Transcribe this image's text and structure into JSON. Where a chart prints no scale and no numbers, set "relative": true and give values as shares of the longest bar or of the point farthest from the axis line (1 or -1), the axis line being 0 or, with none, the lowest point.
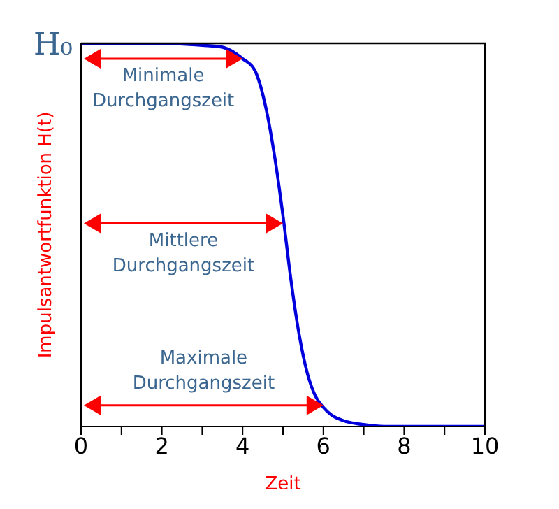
{
  "chart_data": {
    "type": "line",
    "relative": true,
    "xlabel": "Zeit",
    "ylabel": "Impulsantwortfunktion H(t)",
    "x": [
      0,
      1,
      2,
      3,
      3.5,
      4,
      4.3,
      4.6,
      4.8,
      5,
      5.2,
      5.4,
      5.6,
      5.8,
      6,
      6.2,
      6.5,
      7,
      7.5,
      8,
      9,
      10
    ],
    "series": [
      {
        "color": "#0000dd",
        "values": [
          1,
          1,
          1,
          0.995,
          0.99,
          0.96,
          0.93,
          0.82,
          0.7,
          0.55,
          0.38,
          0.24,
          0.14,
          0.08,
          0.05,
          0.03,
          0.015,
          0.005,
          0,
          0,
          0,
          0
        ]
      }
    ],
    "xlim": [
      0,
      10
    ],
    "xticks": [
      0,
      {
        "value": 1,
        "label": null
      },
      2,
      {
        "value": 3,
        "label": null
      },
      4,
      {
        "value": 5,
        "label": null
      },
      6,
      {
        "value": 7,
        "label": null
      },
      8,
      {
        "value": 9,
        "label": null
      },
      10
    ],
    "marker": "none",
    "annotations": [
      {
        "text": "H₀",
        "x": 0,
        "y": 1
      },
      {
        "text": "Minimale Durchgangszeit",
        "x": 4,
        "y": 0.96
      },
      {
        "text": "Mittlere Durchgangszeit",
        "x": 5,
        "y": 0.53
      },
      {
        "text": "Maximale Durchgangszeit",
        "x": 6,
        "y": 0.055
      }
    ]
  }
}
